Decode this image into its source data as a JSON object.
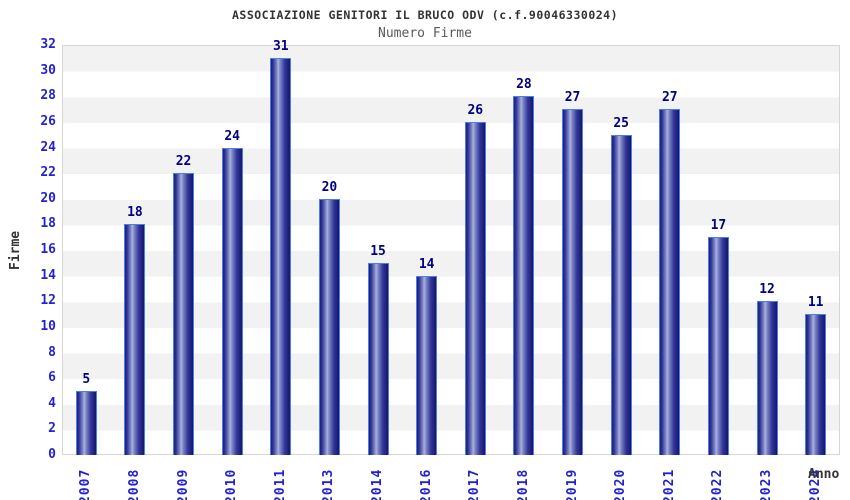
{
  "header": {
    "title": "ASSOCIAZIONE GENITORI IL BRUCO ODV (c.f.90046330024)",
    "subtitle": "Numero Firme"
  },
  "axes": {
    "y_label": "Firme",
    "x_label": "Anno"
  },
  "chart_data": {
    "type": "bar",
    "title": "ASSOCIAZIONE GENITORI IL BRUCO ODV (c.f.90046330024)",
    "subtitle": "Numero Firme",
    "xlabel": "Anno",
    "ylabel": "Firme",
    "categories": [
      "2007",
      "2008",
      "2009",
      "2010",
      "2011",
      "2013",
      "2014",
      "2016",
      "2017",
      "2018",
      "2019",
      "2020",
      "2021",
      "2022",
      "2023",
      "2024"
    ],
    "values": [
      5,
      18,
      22,
      24,
      31,
      20,
      15,
      14,
      26,
      28,
      27,
      25,
      27,
      17,
      12,
      11
    ],
    "ylim": [
      0,
      32
    ],
    "ytick_step": 2,
    "grid": "alternating-horizontal-bands",
    "legend": "none",
    "bar_labels_shown": true,
    "x_labels_rotated_degrees": 90,
    "colors": {
      "tick_label_blue": "#2323cc",
      "bar_value_navy": "#000080",
      "bar_border_light_blue": "#4a7fe8",
      "bar_gradient_dark": "#1d1d76",
      "bar_gradient_light": "#aab1da",
      "band_gray": "#f2f2f2",
      "plot_border_gray": "#d6d6d6",
      "title_color": "#333333",
      "subtitle_color": "#5a5a5a"
    }
  }
}
